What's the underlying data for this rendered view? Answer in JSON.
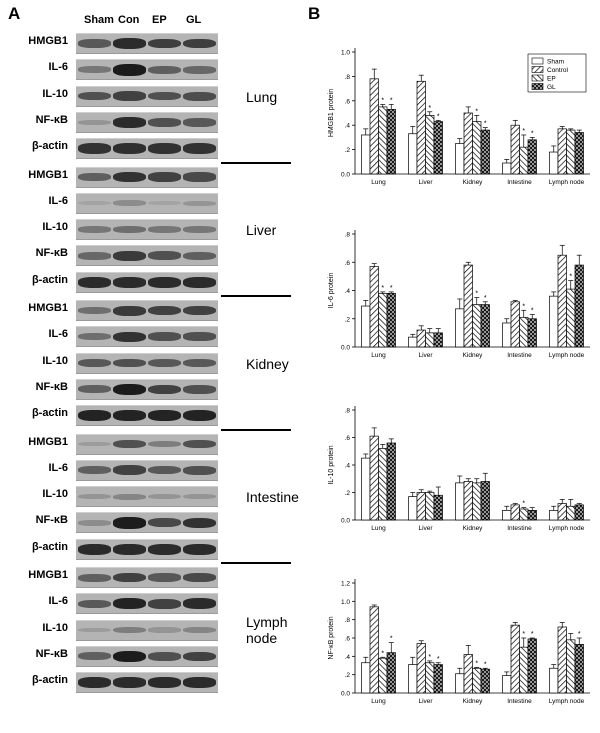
{
  "panel_a": {
    "letter": "A",
    "lanes": [
      "Sham",
      "Con",
      "EP",
      "GL"
    ],
    "groups": [
      {
        "organ": "Lung",
        "rows": [
          {
            "label": "HMGB1",
            "intensity": [
              0.55,
              0.85,
              0.72,
              0.72
            ]
          },
          {
            "label": "IL-6",
            "intensity": [
              0.35,
              0.95,
              0.5,
              0.45
            ]
          },
          {
            "label": "IL-10",
            "intensity": [
              0.6,
              0.7,
              0.6,
              0.62
            ]
          },
          {
            "label": "NF-κB",
            "intensity": [
              0.15,
              0.85,
              0.6,
              0.55
            ]
          },
          {
            "label": "β-actin",
            "intensity": [
              0.8,
              0.82,
              0.8,
              0.8
            ]
          }
        ]
      },
      {
        "organ": "Liver",
        "rows": [
          {
            "label": "HMGB1",
            "intensity": [
              0.5,
              0.8,
              0.7,
              0.65
            ]
          },
          {
            "label": "IL-6",
            "intensity": [
              0.05,
              0.2,
              0.05,
              0.15
            ]
          },
          {
            "label": "IL-10",
            "intensity": [
              0.35,
              0.4,
              0.35,
              0.35
            ]
          },
          {
            "label": "NF-κB",
            "intensity": [
              0.45,
              0.75,
              0.6,
              0.5
            ]
          },
          {
            "label": "β-actin",
            "intensity": [
              0.85,
              0.85,
              0.85,
              0.85
            ]
          }
        ]
      },
      {
        "organ": "Kidney",
        "rows": [
          {
            "label": "HMGB1",
            "intensity": [
              0.4,
              0.75,
              0.7,
              0.7
            ]
          },
          {
            "label": "IL-6",
            "intensity": [
              0.4,
              0.8,
              0.6,
              0.6
            ]
          },
          {
            "label": "IL-10",
            "intensity": [
              0.55,
              0.6,
              0.55,
              0.55
            ]
          },
          {
            "label": "NF-κB",
            "intensity": [
              0.5,
              0.95,
              0.7,
              0.6
            ]
          },
          {
            "label": "β-actin",
            "intensity": [
              0.9,
              0.9,
              0.9,
              0.9
            ]
          }
        ]
      },
      {
        "organ": "Intestine",
        "rows": [
          {
            "label": "HMGB1",
            "intensity": [
              0.1,
              0.6,
              0.3,
              0.6
            ]
          },
          {
            "label": "IL-6",
            "intensity": [
              0.5,
              0.7,
              0.55,
              0.6
            ]
          },
          {
            "label": "IL-10",
            "intensity": [
              0.15,
              0.25,
              0.15,
              0.15
            ]
          },
          {
            "label": "NF-κB",
            "intensity": [
              0.2,
              0.95,
              0.65,
              0.8
            ]
          },
          {
            "label": "β-actin",
            "intensity": [
              0.85,
              0.85,
              0.85,
              0.85
            ]
          }
        ]
      },
      {
        "organ": "Lymph\nnode",
        "rows": [
          {
            "label": "HMGB1",
            "intensity": [
              0.5,
              0.7,
              0.55,
              0.65
            ]
          },
          {
            "label": "IL-6",
            "intensity": [
              0.55,
              0.9,
              0.7,
              0.85
            ]
          },
          {
            "label": "IL-10",
            "intensity": [
              0.1,
              0.3,
              0.15,
              0.25
            ]
          },
          {
            "label": "NF-κB",
            "intensity": [
              0.5,
              0.95,
              0.6,
              0.7
            ]
          },
          {
            "label": "β-actin",
            "intensity": [
              0.85,
              0.85,
              0.85,
              0.85
            ]
          }
        ]
      }
    ]
  },
  "panel_b": {
    "letter": "B"
  },
  "chart_data": [
    {
      "type": "bar",
      "ylabel": "HMGB1 protein",
      "ylim": [
        0,
        1.0
      ],
      "yticks": [
        "0.0",
        ".2",
        ".4",
        ".6",
        ".8",
        "1.0"
      ],
      "categories": [
        "Lung",
        "Liver",
        "Kidney",
        "Intestine",
        "Lymph node"
      ],
      "legend": "top-right",
      "series": [
        {
          "name": "Sham",
          "values": [
            0.32,
            0.33,
            0.25,
            0.09,
            0.18
          ],
          "errors": [
            0.05,
            0.06,
            0.04,
            0.03,
            0.05
          ]
        },
        {
          "name": "Control",
          "values": [
            0.78,
            0.76,
            0.5,
            0.4,
            0.37
          ],
          "errors": [
            0.08,
            0.05,
            0.05,
            0.04,
            0.02
          ]
        },
        {
          "name": "EP",
          "values": [
            0.55,
            0.48,
            0.43,
            0.22,
            0.36
          ],
          "errors": [
            0.02,
            0.03,
            0.05,
            0.1,
            0.01
          ]
        },
        {
          "name": "GL",
          "values": [
            0.53,
            0.43,
            0.36,
            0.28,
            0.34
          ],
          "errors": [
            0.04,
            0.01,
            0.02,
            0.02,
            0.02
          ]
        }
      ],
      "significant": [
        [],
        [],
        [
          "*",
          "*",
          "*",
          "*",
          "*"
        ],
        [
          "*",
          "*",
          "*",
          "*",
          "*"
        ]
      ],
      "sig_marks": [
        [
          0,
          2
        ],
        [
          0,
          3
        ],
        [
          1,
          2
        ],
        [
          1,
          3
        ],
        [
          2,
          2
        ],
        [
          2,
          3
        ],
        [
          3,
          2
        ],
        [
          3,
          3
        ]
      ]
    },
    {
      "type": "bar",
      "ylabel": "IL-6 protein",
      "ylim": [
        0,
        0.8
      ],
      "yticks": [
        "0.0",
        ".2",
        ".4",
        ".6",
        ".8"
      ],
      "categories": [
        "Lung",
        "Liver",
        "Kidney",
        "Intestine",
        "Lymph node"
      ],
      "series": [
        {
          "name": "Sham",
          "values": [
            0.29,
            0.07,
            0.27,
            0.17,
            0.36
          ],
          "errors": [
            0.04,
            0.02,
            0.07,
            0.03,
            0.03
          ]
        },
        {
          "name": "Control",
          "values": [
            0.57,
            0.12,
            0.58,
            0.32,
            0.65
          ],
          "errors": [
            0.02,
            0.03,
            0.02,
            0.01,
            0.07
          ]
        },
        {
          "name": "EP",
          "values": [
            0.38,
            0.1,
            0.3,
            0.21,
            0.41
          ],
          "errors": [
            0.01,
            0.03,
            0.05,
            0.05,
            0.06
          ]
        },
        {
          "name": "GL",
          "values": [
            0.38,
            0.1,
            0.3,
            0.2,
            0.58
          ],
          "errors": [
            0.01,
            0.03,
            0.02,
            0.03,
            0.07
          ]
        }
      ],
      "sig_marks": [
        [
          0,
          2
        ],
        [
          0,
          3
        ],
        [
          2,
          2
        ],
        [
          2,
          3
        ],
        [
          3,
          2
        ],
        [
          3,
          3
        ],
        [
          4,
          2
        ]
      ]
    },
    {
      "type": "bar",
      "ylabel": "IL-10 protein",
      "ylim": [
        0,
        0.8
      ],
      "yticks": [
        "0.0",
        ".2",
        ".4",
        ".6",
        ".8"
      ],
      "categories": [
        "Lung",
        "Liver",
        "Kidney",
        "Intestine",
        "Lymph node"
      ],
      "series": [
        {
          "name": "Sham",
          "values": [
            0.45,
            0.17,
            0.27,
            0.07,
            0.07
          ],
          "errors": [
            0.03,
            0.03,
            0.05,
            0.03,
            0.03
          ]
        },
        {
          "name": "Control",
          "values": [
            0.61,
            0.2,
            0.28,
            0.11,
            0.12
          ],
          "errors": [
            0.06,
            0.02,
            0.02,
            0.01,
            0.03
          ]
        },
        {
          "name": "EP",
          "values": [
            0.52,
            0.2,
            0.27,
            0.08,
            0.1
          ],
          "errors": [
            0.03,
            0.01,
            0.03,
            0.01,
            0.05
          ]
        },
        {
          "name": "GL",
          "values": [
            0.56,
            0.18,
            0.28,
            0.07,
            0.11
          ],
          "errors": [
            0.03,
            0.06,
            0.06,
            0.02,
            0.01
          ]
        }
      ],
      "sig_marks": [
        [
          3,
          2
        ]
      ]
    },
    {
      "type": "bar",
      "ylabel": "NF-κB protein",
      "ylim": [
        0,
        1.2
      ],
      "yticks": [
        "0.0",
        ".2",
        ".4",
        ".6",
        ".8",
        "1.0",
        "1.2"
      ],
      "categories": [
        "Lung",
        "Liver",
        "Kidney",
        "Intestine",
        "Lymph node"
      ],
      "series": [
        {
          "name": "Sham",
          "values": [
            0.33,
            0.31,
            0.21,
            0.19,
            0.27
          ],
          "errors": [
            0.06,
            0.08,
            0.06,
            0.04,
            0.04
          ]
        },
        {
          "name": "Control",
          "values": [
            0.94,
            0.54,
            0.42,
            0.74,
            0.72
          ],
          "errors": [
            0.02,
            0.03,
            0.1,
            0.03,
            0.05
          ]
        },
        {
          "name": "EP",
          "values": [
            0.38,
            0.33,
            0.27,
            0.5,
            0.58
          ],
          "errors": [
            0.01,
            0.02,
            0.01,
            0.1,
            0.07
          ]
        },
        {
          "name": "GL",
          "values": [
            0.44,
            0.31,
            0.26,
            0.59,
            0.53
          ],
          "errors": [
            0.11,
            0.02,
            0.01,
            0.01,
            0.07
          ]
        }
      ],
      "sig_marks": [
        [
          0,
          2
        ],
        [
          0,
          3
        ],
        [
          1,
          2
        ],
        [
          1,
          3
        ],
        [
          2,
          2
        ],
        [
          2,
          3
        ],
        [
          3,
          2
        ],
        [
          3,
          3
        ],
        [
          4,
          3
        ]
      ]
    }
  ]
}
